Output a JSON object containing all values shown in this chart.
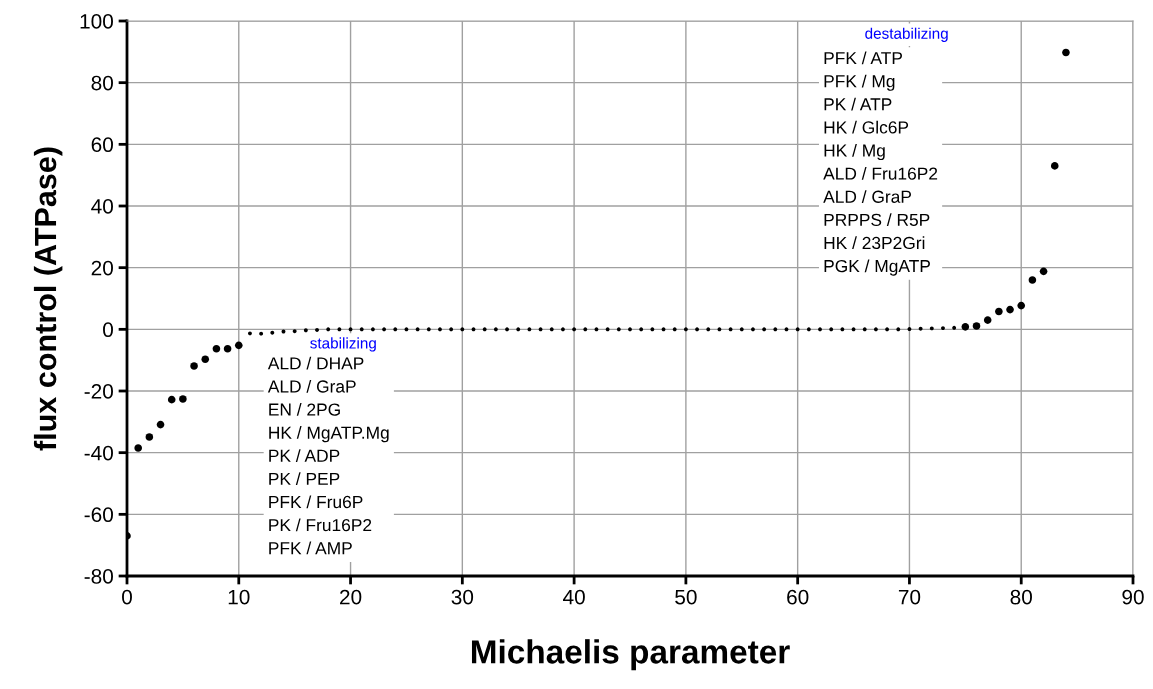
{
  "chart_data": {
    "type": "scatter",
    "xlabel": "Michaelis parameter",
    "ylabel": "flux control (ATPase)",
    "xlim": [
      0,
      90
    ],
    "xticks": [
      0,
      10,
      20,
      30,
      40,
      50,
      60,
      70,
      80,
      90
    ],
    "ylim": [
      -80,
      100
    ],
    "yticks": [
      -80,
      -60,
      -40,
      -20,
      0,
      20,
      40,
      60,
      80,
      100
    ],
    "grid": true,
    "marker": "circle",
    "series": [
      {
        "color": "#000000",
        "x": [
          0,
          1,
          2,
          3,
          4,
          5,
          6,
          7,
          8,
          9,
          10,
          75,
          76,
          77,
          78,
          79,
          80,
          81,
          82,
          83,
          84
        ],
        "values": [
          -67,
          -38.5,
          -34.9,
          -30.9,
          -22.8,
          -22.6,
          -11.9,
          -9.7,
          -6.3,
          -6.3,
          -5.2,
          0.8,
          1.1,
          3.0,
          5.8,
          6.4,
          7.7,
          16.0,
          18.8,
          53,
          89.8
        ]
      },
      {
        "color": "#000000",
        "x": [
          11,
          12,
          13,
          14,
          15,
          16,
          17,
          18,
          19,
          20,
          21,
          22,
          23,
          24,
          25,
          26,
          27,
          28,
          29,
          30,
          31,
          32,
          33,
          34,
          35,
          36,
          37,
          38,
          39,
          40,
          41,
          42,
          43,
          44,
          45,
          46,
          47,
          48,
          49,
          50,
          51,
          52,
          53,
          54,
          55,
          56,
          57,
          58,
          59,
          60,
          61,
          62,
          63,
          64,
          65,
          66,
          67,
          68,
          69,
          70,
          71,
          72,
          73,
          74
        ],
        "values": [
          -1.3,
          -1.4,
          -1.1,
          -0.7,
          -0.6,
          -0.3,
          -0.2,
          0,
          0,
          0,
          0,
          0,
          0,
          0,
          0,
          0,
          0,
          0,
          0,
          0,
          0,
          0,
          0,
          0,
          0,
          0,
          0,
          0,
          0,
          0,
          0,
          0,
          0,
          0,
          0,
          0,
          0,
          0,
          0,
          0,
          0,
          0,
          0,
          0,
          0,
          0,
          0,
          0,
          0,
          0,
          0,
          0,
          0,
          0,
          0,
          0,
          0,
          0,
          0,
          0.1,
          0.2,
          0.3,
          0.4,
          0.5
        ]
      }
    ],
    "annotations": [
      "stabilizing",
      "ALD / DHAP\nALD / GraP\nEN / 2PG\nHK / MgATP.Mg\nPK / ADP\nPK / PEP\nPFK / Fru6P\nPK / Fru16P2\nPFK / AMP",
      "destabilizing",
      "PFK / ATP\nPFK / Mg\nPK / ATP\nHK / Glc6P\nHK / Mg\nALD / Fru16P2\nALD / GraP\nPRPPS / R5P\nHK / 23P2Gri\nPGK / MgATP"
    ]
  }
}
